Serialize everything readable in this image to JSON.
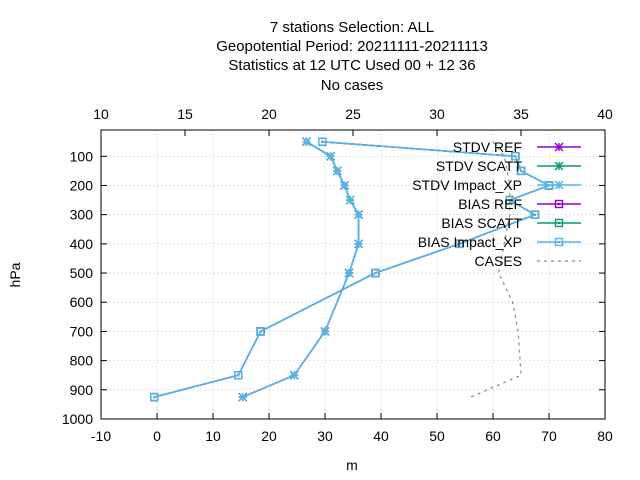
{
  "title_lines": [
    "7 stations Selection: ALL",
    "Geopotential  Period: 20211111-20211113",
    "Statistics at 12 UTC  Used  00 + 12 36",
    "No cases"
  ],
  "chart_data": {
    "type": "line",
    "xlabel": "m",
    "ylabel": "hPa",
    "xlim": [
      -10,
      80
    ],
    "ylim": [
      1000,
      10
    ],
    "x_ticks": [
      -10,
      0,
      10,
      20,
      30,
      40,
      50,
      60,
      70,
      80
    ],
    "x2lim": [
      10,
      40
    ],
    "x2_ticks": [
      10,
      15,
      20,
      25,
      30,
      35,
      40
    ],
    "y_ticks": [
      100,
      200,
      300,
      400,
      500,
      600,
      700,
      800,
      900,
      1000
    ],
    "grid": true,
    "legend_position": "top-right",
    "levels": [
      50,
      100,
      150,
      200,
      250,
      300,
      400,
      500,
      700,
      850,
      925
    ],
    "series": [
      {
        "name": "STDV REF",
        "color": "#9400d3",
        "marker": "star",
        "dash": false,
        "values": [
          26.7,
          31,
          32.2,
          33.5,
          34.5,
          36,
          36,
          34.3,
          30,
          24.5,
          15.3
        ]
      },
      {
        "name": "STDV SCATT",
        "color": "#009e73",
        "marker": "star",
        "dash": false,
        "values": [
          26.7,
          31,
          32.2,
          33.5,
          34.5,
          36,
          36,
          34.3,
          30,
          24.5,
          15.3
        ]
      },
      {
        "name": "STDV Impact_XP",
        "color": "#56b4e9",
        "marker": "star",
        "dash": false,
        "values": [
          26.7,
          31,
          32.2,
          33.5,
          34.5,
          36,
          36,
          34.3,
          30,
          24.5,
          15.3
        ]
      },
      {
        "name": "BIAS REF",
        "color": "#9400d3",
        "marker": "square",
        "dash": false,
        "values": [
          29.5,
          64,
          65,
          70,
          63,
          67.5,
          54,
          39,
          18.5,
          14.5,
          -0.5
        ]
      },
      {
        "name": "BIAS SCATT",
        "color": "#009e73",
        "marker": "square",
        "dash": false,
        "values": [
          29.5,
          64,
          65,
          70,
          63,
          67.5,
          54,
          39,
          18.5,
          14.5,
          -0.5
        ]
      },
      {
        "name": "BIAS Impact_XP",
        "color": "#56b4e9",
        "marker": "square",
        "dash": false,
        "values": [
          29.5,
          64,
          65,
          70,
          63,
          67.5,
          54,
          39,
          18.5,
          14.5,
          -0.5
        ]
      },
      {
        "name": "CASES",
        "color": "#888888",
        "marker": "none",
        "dash": true,
        "points": [
          [
            60,
            50
          ],
          [
            62,
            100
          ],
          [
            63,
            200
          ],
          [
            63,
            300
          ],
          [
            61,
            500
          ],
          [
            63.5,
            600
          ],
          [
            64.5,
            700
          ],
          [
            65,
            850
          ],
          [
            56,
            925
          ]
        ]
      }
    ]
  }
}
